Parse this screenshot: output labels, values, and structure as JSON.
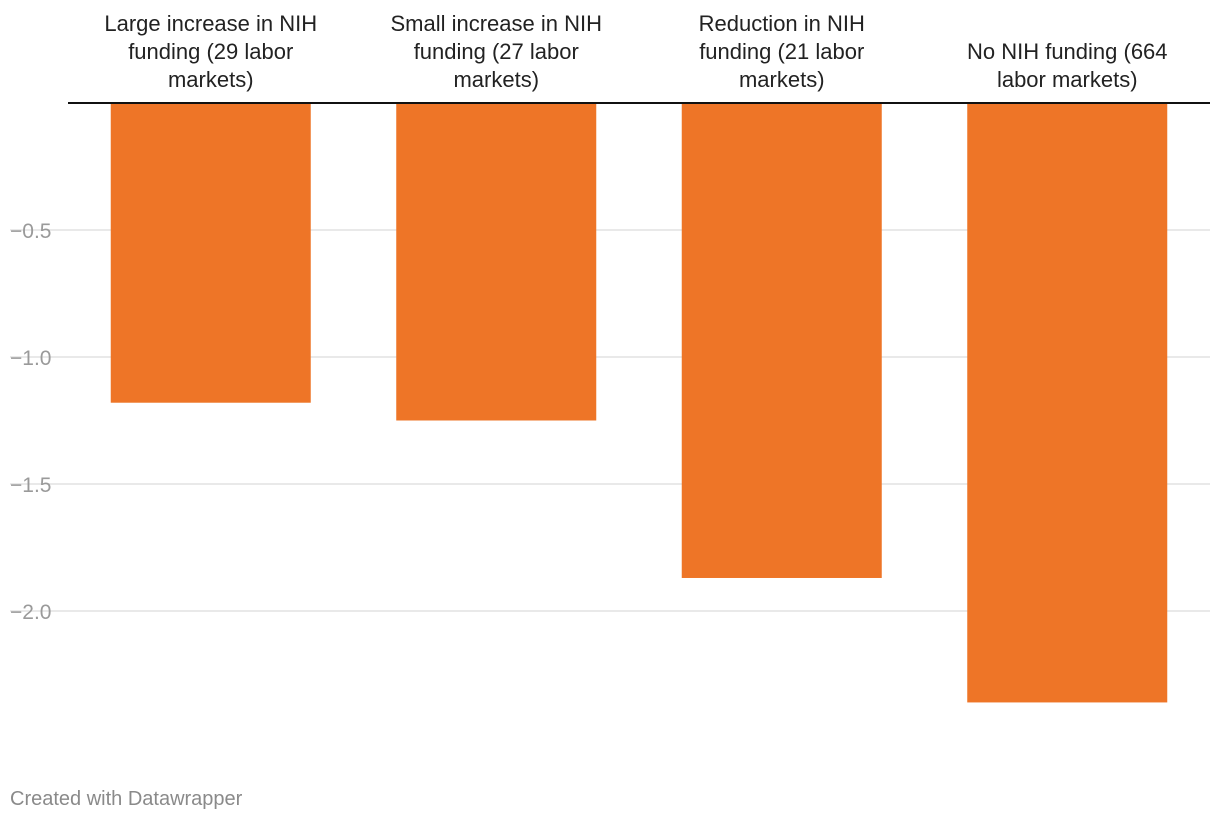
{
  "chart_data": {
    "type": "bar",
    "orientation": "vertical",
    "categories": [
      [
        "Large increase in NIH",
        "funding (29 labor",
        "markets)"
      ],
      [
        "Small increase in NIH",
        "funding (27 labor",
        "markets)"
      ],
      [
        "Reduction in NIH",
        "funding (21 labor",
        "markets)"
      ],
      [
        "No NIH funding (664",
        "labor markets)"
      ]
    ],
    "values": [
      -1.18,
      -1.25,
      -1.87,
      -2.36
    ],
    "ylim": [
      -2.5,
      0
    ],
    "yticks": [
      -0.5,
      -1.0,
      -1.5,
      -2.0
    ],
    "ytick_labels": [
      "−0.5",
      "−1.0",
      "−1.5",
      "−2.0"
    ],
    "bar_color": "#ee7527",
    "grid": true,
    "category_labels_position": "top"
  },
  "footer": {
    "credit": "Created with Datawrapper"
  }
}
